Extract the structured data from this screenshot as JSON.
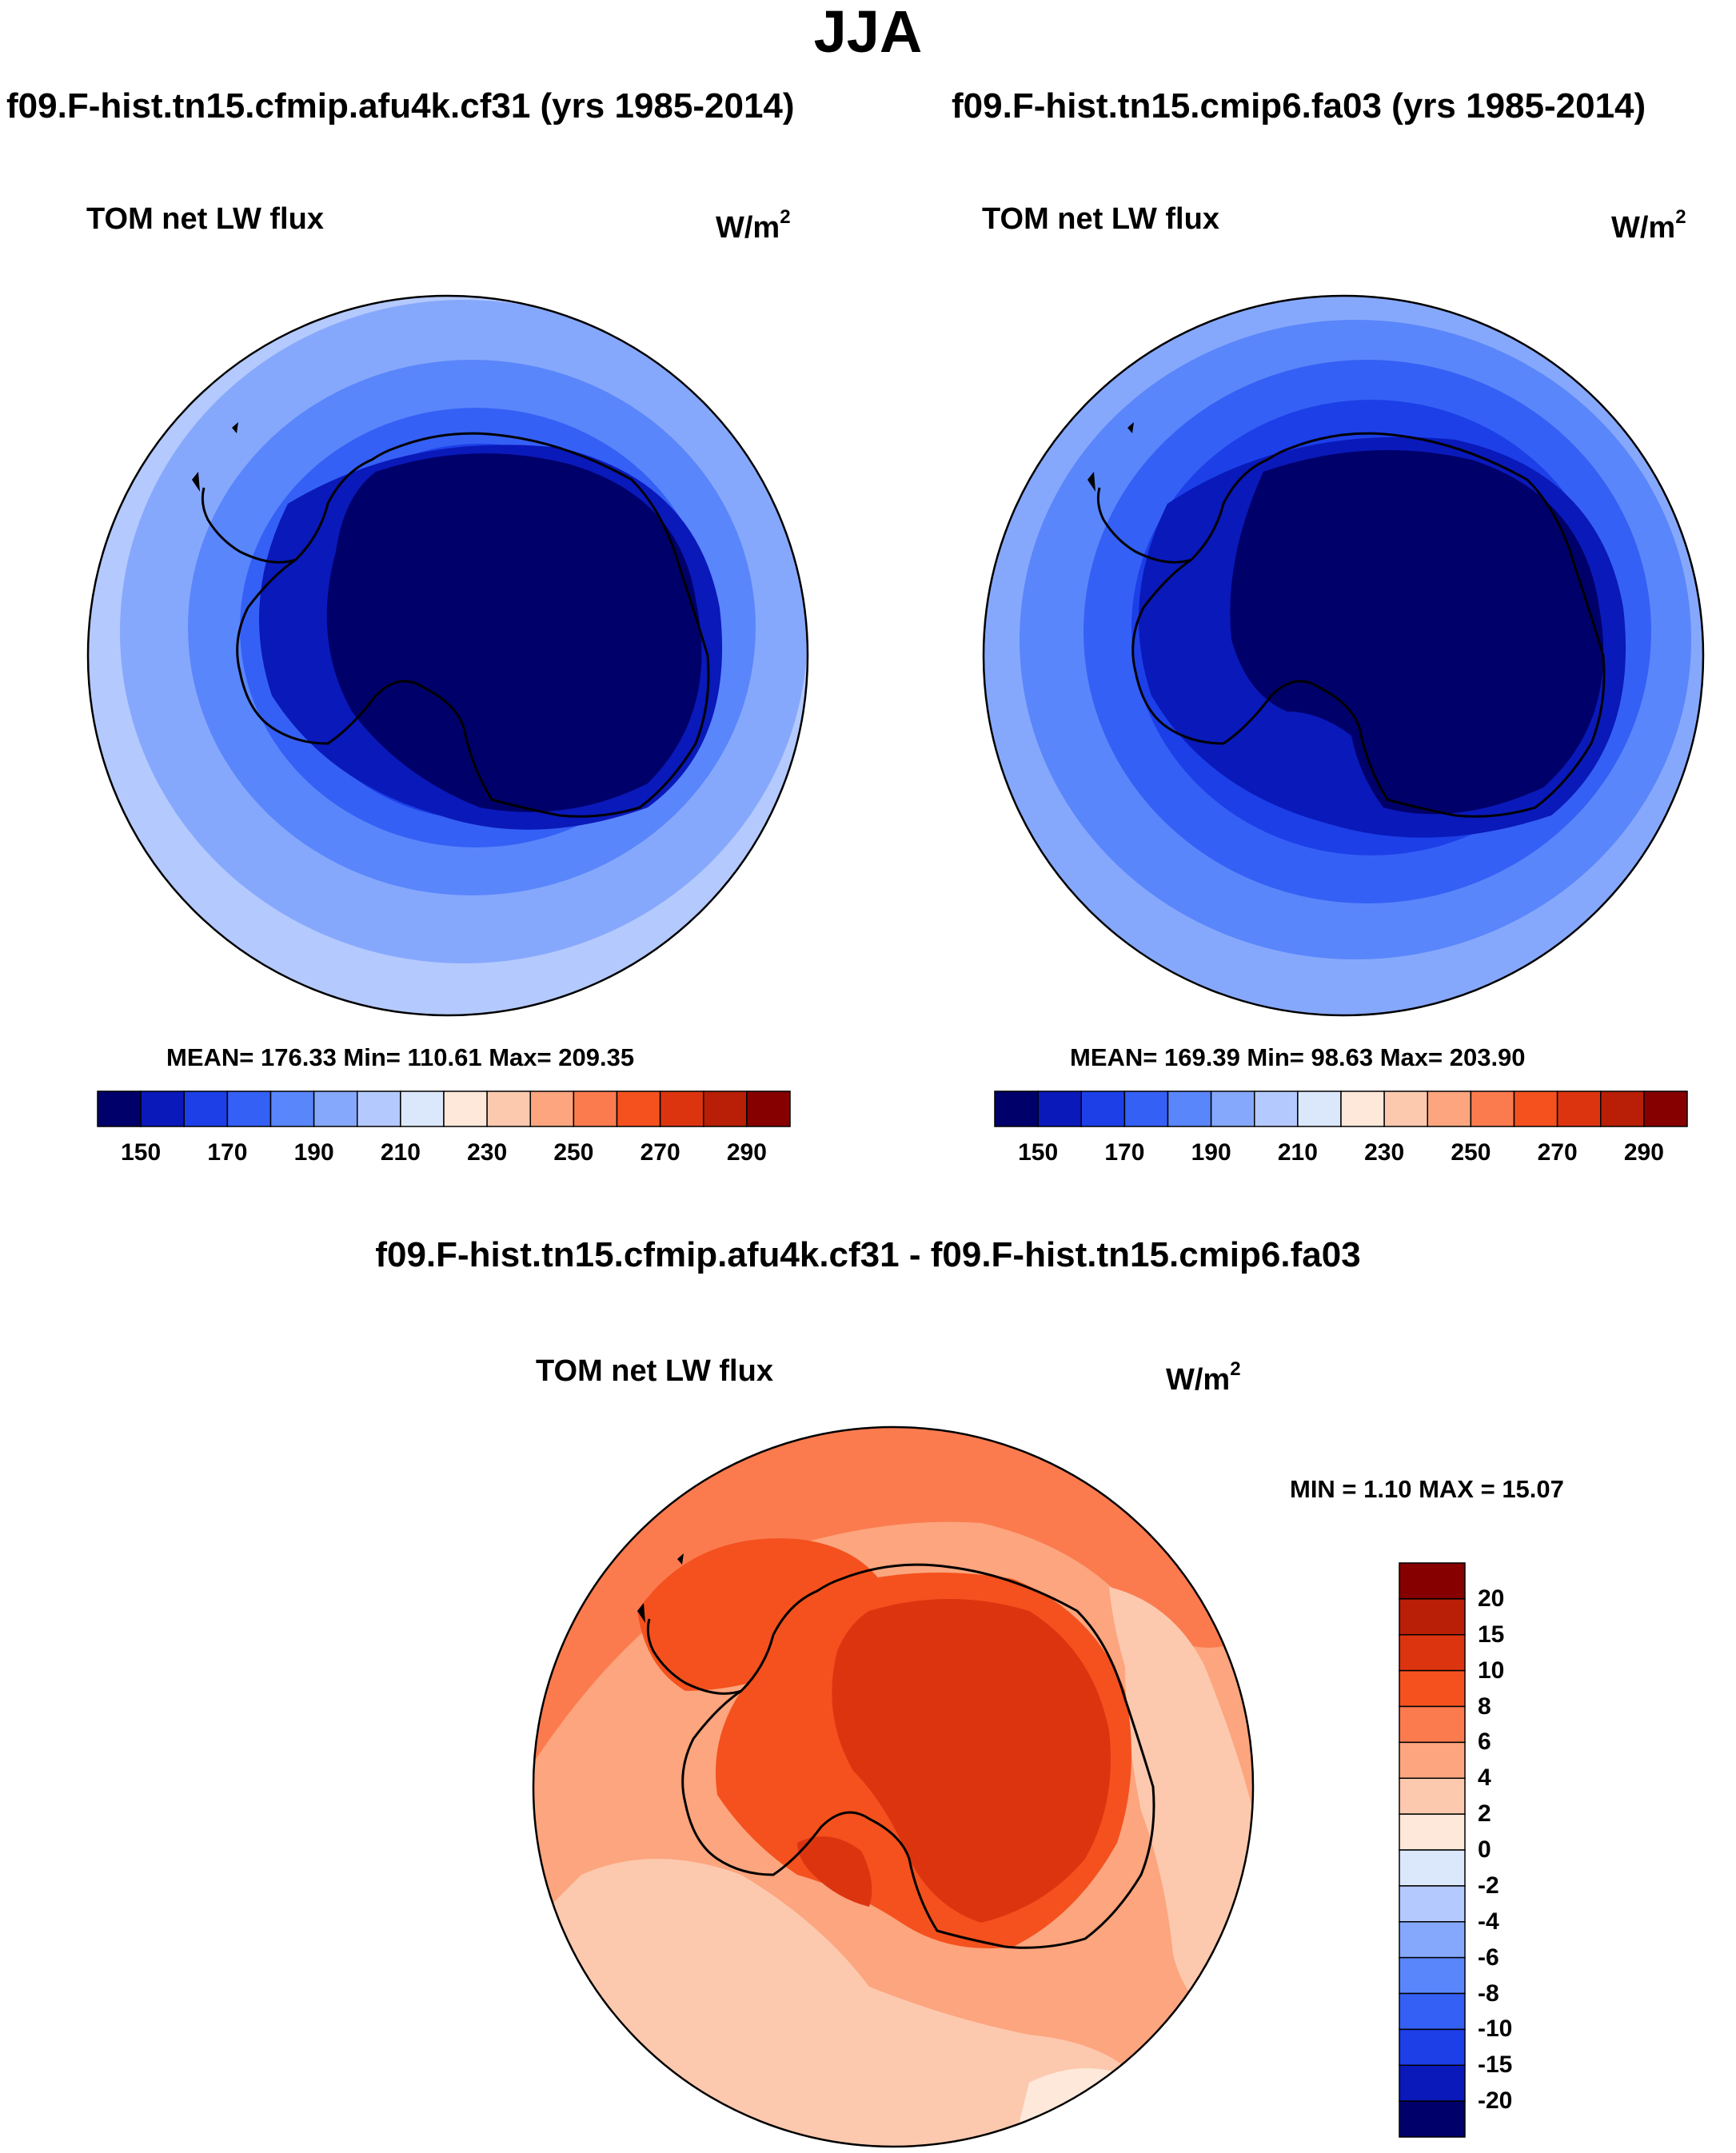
{
  "figure": {
    "season_title": "JJA",
    "diff_title": "f09.F-hist.tn15.cfmip.afu4k.cf31 - f09.F-hist.tn15.cmip6.fa03"
  },
  "panels": [
    {
      "case_title": "f09.F-hist.tn15.cfmip.afu4k.cf31 (yrs 1985-2014)",
      "variable": "TOM net LW flux",
      "units_base": "W/m",
      "units_exp": "2",
      "stats": "MEAN= 176.33  Min= 110.61  Max= 209.35",
      "mean": 176.33,
      "min": 110.61,
      "max": 209.35,
      "contour_levels": [
        150,
        160,
        170,
        180,
        190,
        200,
        210,
        220,
        230,
        240,
        250,
        260,
        270,
        280,
        290
      ],
      "colorbar_ticks": [
        "150",
        "170",
        "190",
        "210",
        "230",
        "250",
        "270",
        "290"
      ]
    },
    {
      "case_title": "f09.F-hist.tn15.cmip6.fa03 (yrs 1985-2014)",
      "variable": "TOM net LW flux",
      "units_base": "W/m",
      "units_exp": "2",
      "stats": "MEAN= 169.39  Min=  98.63  Max= 203.90",
      "mean": 169.39,
      "min": 98.63,
      "max": 203.9,
      "contour_levels": [
        150,
        160,
        170,
        180,
        190,
        200,
        210,
        220,
        230,
        240,
        250,
        260,
        270,
        280,
        290
      ],
      "colorbar_ticks": [
        "150",
        "170",
        "190",
        "210",
        "230",
        "250",
        "270",
        "290"
      ]
    }
  ],
  "difference": {
    "variable": "TOM net LW flux",
    "units_base": "W/m",
    "units_exp": "2",
    "stats": "MIN =   1.10 MAX =  15.07",
    "min": 1.1,
    "max": 15.07,
    "contour_levels": [
      -20,
      -15,
      -10,
      -8,
      -6,
      -4,
      -2,
      0,
      2,
      4,
      6,
      8,
      10,
      15,
      20
    ],
    "colorbar_ticks": [
      "20",
      "15",
      "10",
      "8",
      "6",
      "4",
      "2",
      "0",
      "-2",
      "-4",
      "-6",
      "-8",
      "-10",
      "-15",
      "-20"
    ]
  },
  "colors": {
    "abs_scale": [
      "#00006a",
      "#0a19ba",
      "#1c3fe8",
      "#3560f5",
      "#5a86fb",
      "#86a8fc",
      "#b4c9fd",
      "#dbe8fc",
      "#fde8da",
      "#fcc9ae",
      "#fca57e",
      "#fb7b4f",
      "#f4511e",
      "#dd3410",
      "#b81f06",
      "#860000"
    ],
    "diff_scale": [
      "#860000",
      "#b81f06",
      "#dd3410",
      "#f4511e",
      "#fb7b4f",
      "#fca57e",
      "#fcc9ae",
      "#fde8da",
      "#dbe8fc",
      "#b4c9fd",
      "#86a8fc",
      "#5a86fb",
      "#3560f5",
      "#1c3fe8",
      "#0a19ba",
      "#00006a"
    ]
  }
}
